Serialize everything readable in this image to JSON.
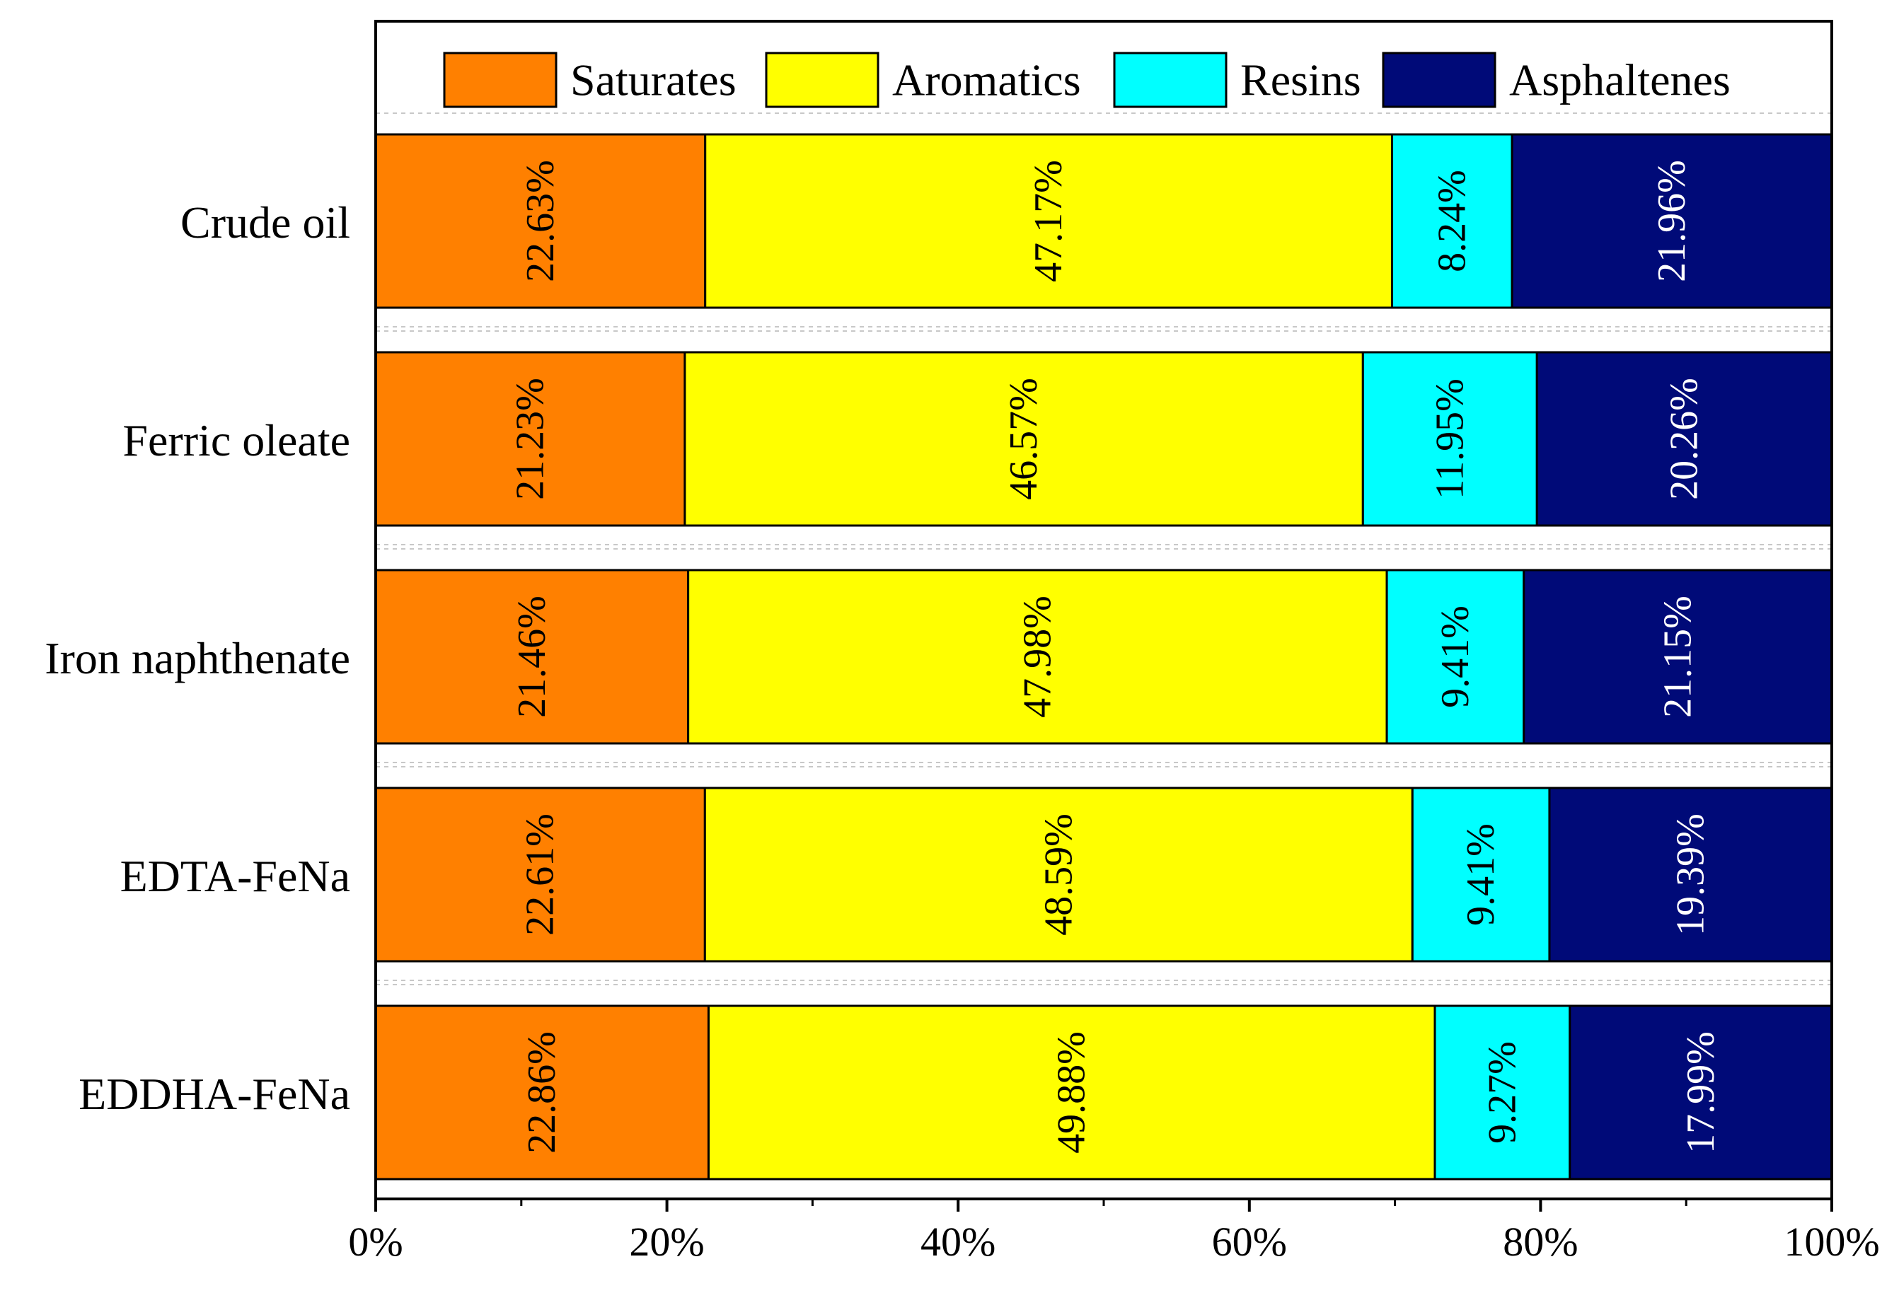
{
  "chart_data": {
    "type": "bar",
    "orientation": "horizontal",
    "stacked": "percent",
    "title": "",
    "xlabel": "",
    "ylabel": "",
    "xlim": [
      0,
      100
    ],
    "x_ticks": [
      "0%",
      "20%",
      "40%",
      "60%",
      "80%",
      "100%"
    ],
    "legend_position": "top",
    "categories": [
      "Crude oil",
      "Ferric oleate",
      "Iron naphthenate",
      "EDTA-FeNa",
      "EDDHA-FeNa"
    ],
    "series": [
      {
        "name": "Saturates",
        "color": "#ff8000",
        "label_color": "#000000",
        "values": [
          22.63,
          21.23,
          21.46,
          22.61,
          22.86
        ],
        "labels": [
          "22.63%",
          "21.23%",
          "21.46%",
          "22.61%",
          "22.86%"
        ]
      },
      {
        "name": "Aromatics",
        "color": "#ffff00",
        "label_color": "#000000",
        "values": [
          47.17,
          46.57,
          47.98,
          48.59,
          49.88
        ],
        "labels": [
          "47.17%",
          "46.57%",
          "47.98%",
          "48.59%",
          "49.88%"
        ]
      },
      {
        "name": "Resins",
        "color": "#00ffff",
        "label_color": "#000000",
        "values": [
          8.24,
          11.95,
          9.41,
          9.41,
          9.27
        ],
        "labels": [
          "8.24%",
          "11.95%",
          "9.41%",
          "9.41%",
          "9.27%"
        ]
      },
      {
        "name": "Asphaltenes",
        "color": "#000a78",
        "label_color": "#ffffff",
        "values": [
          21.96,
          20.26,
          21.15,
          19.39,
          17.99
        ],
        "labels": [
          "21.96%",
          "20.26%",
          "21.15%",
          "19.39%",
          "17.99%"
        ]
      }
    ]
  }
}
